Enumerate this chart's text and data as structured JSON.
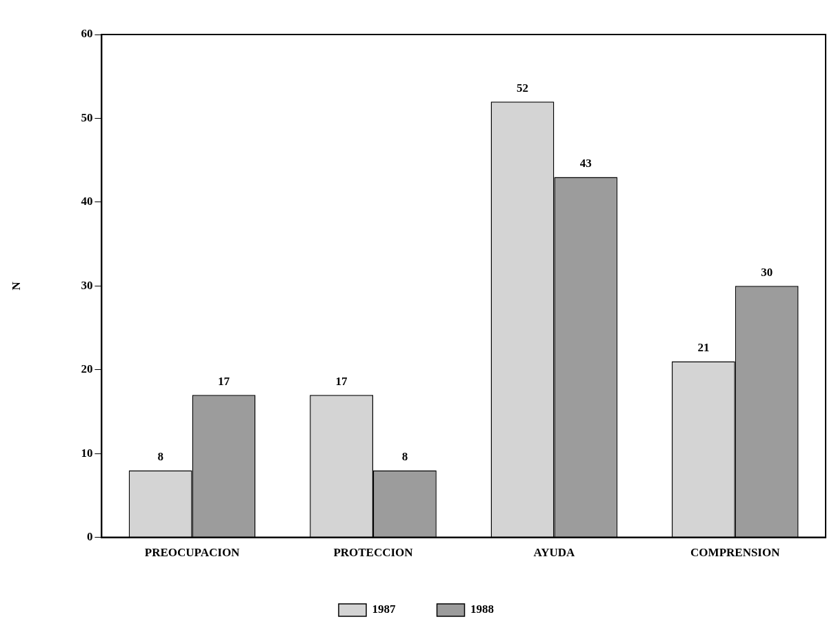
{
  "chart_data": {
    "type": "bar",
    "ylabel": "N",
    "categories": [
      "PREOCUPACION",
      "PROTECCION",
      "AYUDA",
      "COMPRENSION"
    ],
    "series": [
      {
        "name": "1987",
        "color": "#d4d4d4",
        "values": [
          8,
          17,
          52,
          21
        ]
      },
      {
        "name": "1988",
        "color": "#9c9c9c",
        "values": [
          17,
          8,
          43,
          30
        ]
      }
    ],
    "ylim": [
      0,
      60
    ],
    "yticks": [
      0,
      10,
      20,
      30,
      40,
      50,
      60
    ],
    "grid": false,
    "legend": "bottom",
    "data_labels": true
  }
}
